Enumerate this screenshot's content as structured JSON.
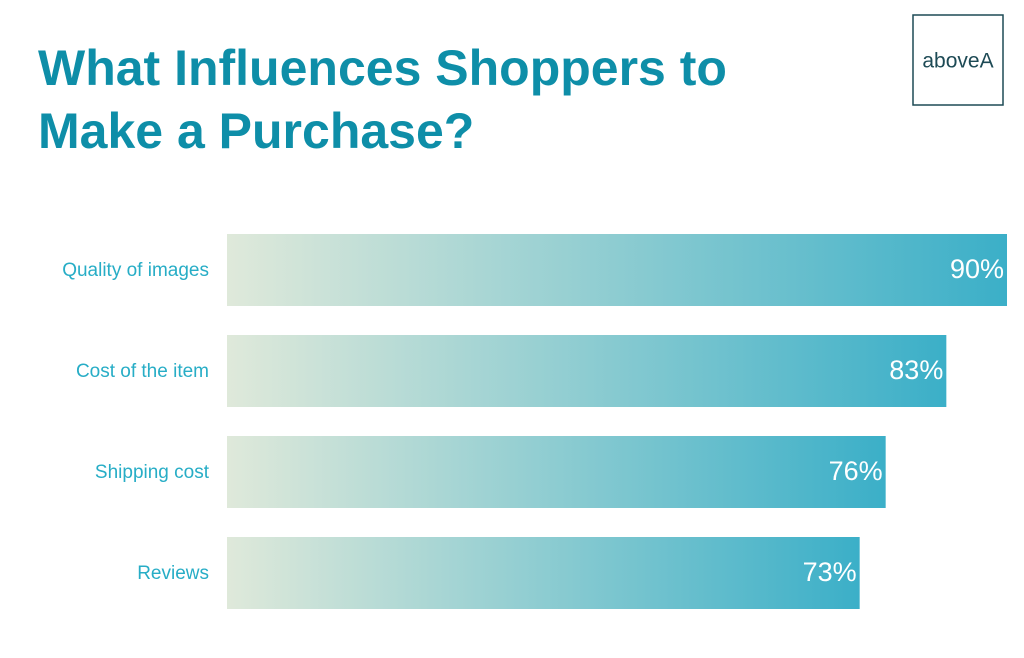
{
  "logo": "aboveA",
  "chart_data": {
    "type": "bar",
    "orientation": "horizontal",
    "title_lines": [
      "What Influences Shoppers to",
      "Make a Purchase?"
    ],
    "categories": [
      "Quality of images",
      "Cost of the item",
      "Shipping cost",
      "Reviews"
    ],
    "values": [
      90,
      83,
      76,
      73
    ],
    "value_labels": [
      "90%",
      "83%",
      "76%",
      "73%"
    ],
    "color": [
      "#dfe9da",
      "#3bafc8"
    ]
  }
}
